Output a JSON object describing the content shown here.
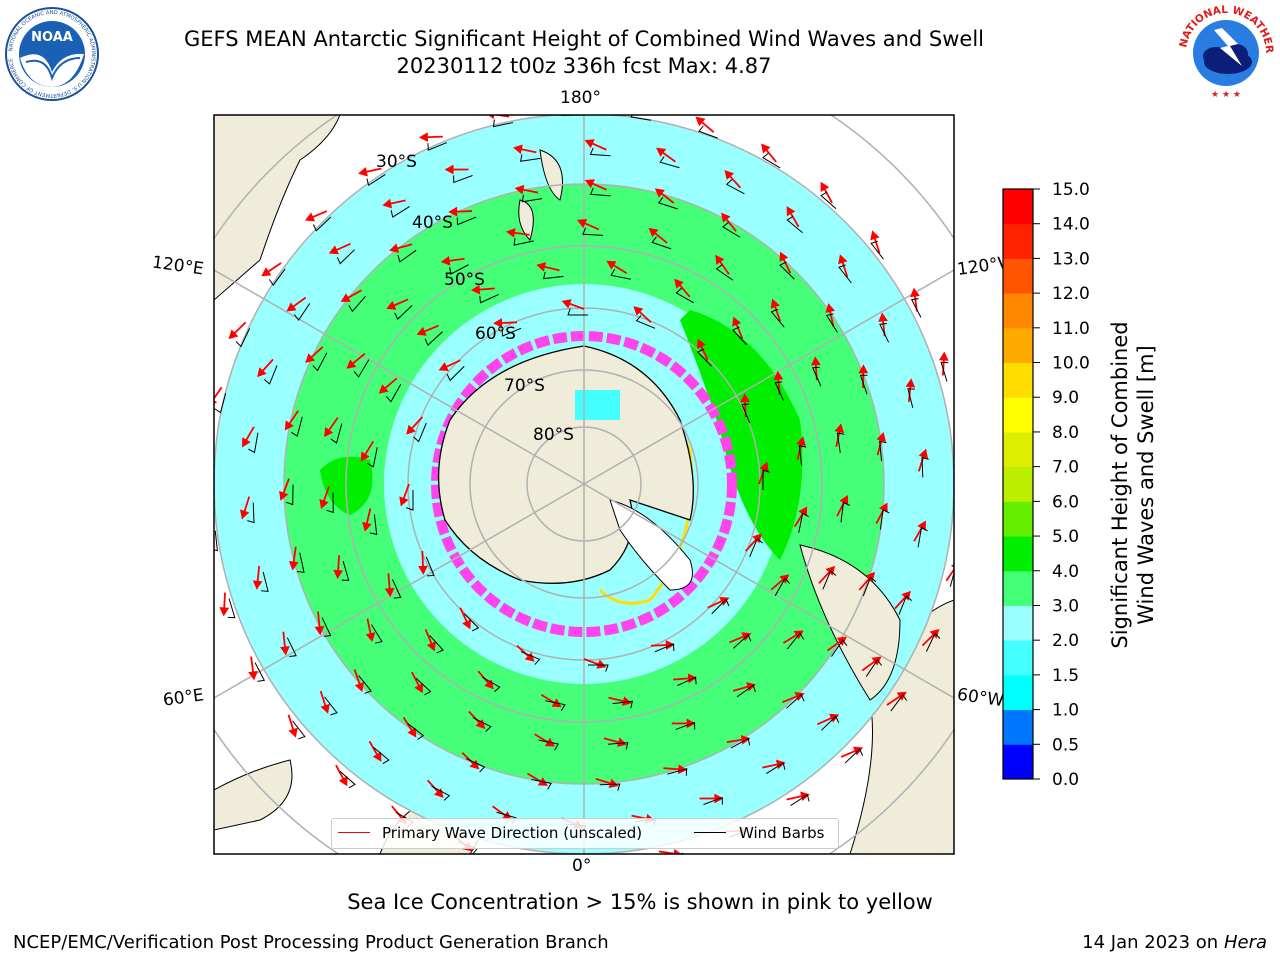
{
  "header": {
    "title_line1": "GEFS MEAN Antarctic Significant Height of Combined Wind Waves and Swell",
    "title_line2": "20230112 t00z 336h fcst   Max: 4.87"
  },
  "logos": {
    "left": "NOAA",
    "left_ring": "NATIONAL OCEANIC AND ATMOSPHERIC ADMINISTRATION  U.S. DEPARTMENT OF COMMERCE",
    "right_ring": "NATIONAL WEATHER SERVICE"
  },
  "map": {
    "lon_labels": {
      "top": "180°",
      "bottom": "0°",
      "left_upper": "120°E",
      "left_lower": "60°E",
      "right_upper": "120°W",
      "right_lower": "60°W"
    },
    "lat_labels": [
      "30°S",
      "40°S",
      "50°S",
      "60°S",
      "70°S",
      "80°S"
    ],
    "colors": {
      "land": "#efedda",
      "ice_pink": "#ff44ee",
      "ocean_low": "#99ffff"
    }
  },
  "legend": {
    "primary_wave": "Primary Wave Direction (unscaled)",
    "wind_barbs": "Wind Barbs",
    "primary_color": "#ff0000",
    "barb_color": "#000000"
  },
  "colorbar": {
    "label_line1": "Significant Height of Combined",
    "label_line2": "Wind Waves and Swell [m]",
    "ticks": [
      "0.0",
      "0.5",
      "1.0",
      "1.5",
      "2.0",
      "3.0",
      "4.0",
      "5.0",
      "6.0",
      "7.0",
      "8.0",
      "9.0",
      "10.0",
      "11.0",
      "12.0",
      "13.0",
      "14.0",
      "15.0"
    ],
    "colors": [
      "#0000ff",
      "#0077ff",
      "#00ffff",
      "#44ffff",
      "#99ffff",
      "#44ff77",
      "#00ee00",
      "#66ee00",
      "#bbee00",
      "#ddee00",
      "#ffff00",
      "#ffdd00",
      "#ffaa00",
      "#ff8800",
      "#ff5500",
      "#ff2200",
      "#ff0000"
    ]
  },
  "note": "Sea Ice Concentration > 15% is shown in pink to yellow",
  "footer": {
    "left": "NCEP/EMC/Verification Post Processing Product Generation Branch",
    "right_text": "14 Jan 2023 on ",
    "right_italic": "Hera"
  }
}
